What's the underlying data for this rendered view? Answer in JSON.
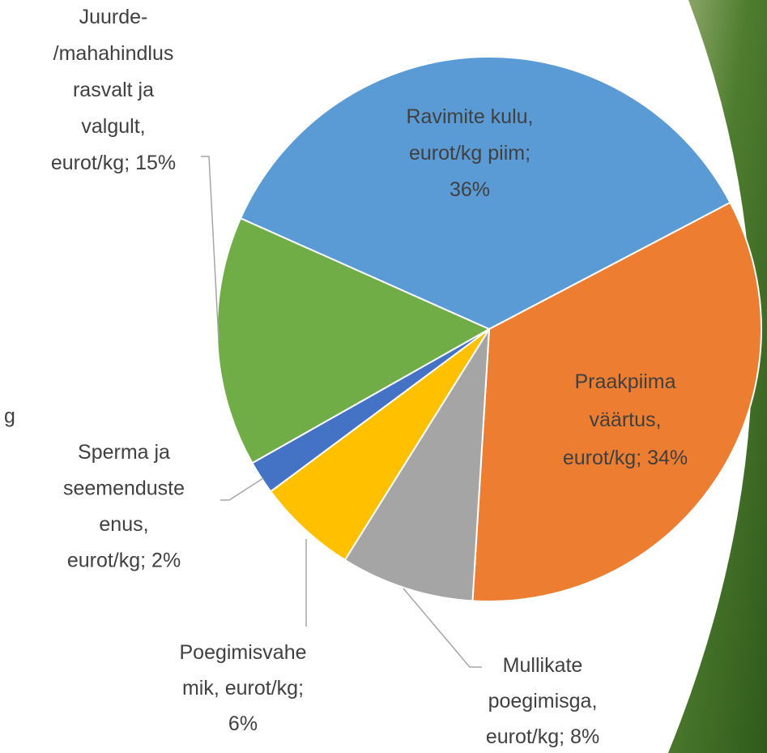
{
  "chart_data": {
    "type": "pie",
    "values": [
      36,
      34,
      8,
      6,
      2,
      15
    ],
    "value_labels": [
      "Ravimite kulu,\neurot/kg piim;\n36%",
      "Praakpiima\nväärtus,\neurot/kg; 34%",
      "Mullikate\npoegimisga,\neurot/kg; 8%",
      "Poegimisvahe\nmik, eurot/kg;\n6%",
      "Sperma ja\nseemenduste\nenus,\neurot/kg; 2%",
      "Juurde-\n/mahahindlus\nrasvalt ja\nvalgult,\neurot/kg; 15%"
    ],
    "colors": [
      "#5b9bd5",
      "#ed7d31",
      "#a5a5a5",
      "#ffc000",
      "#4472c4",
      "#70ad47"
    ],
    "partial_label": "g"
  }
}
